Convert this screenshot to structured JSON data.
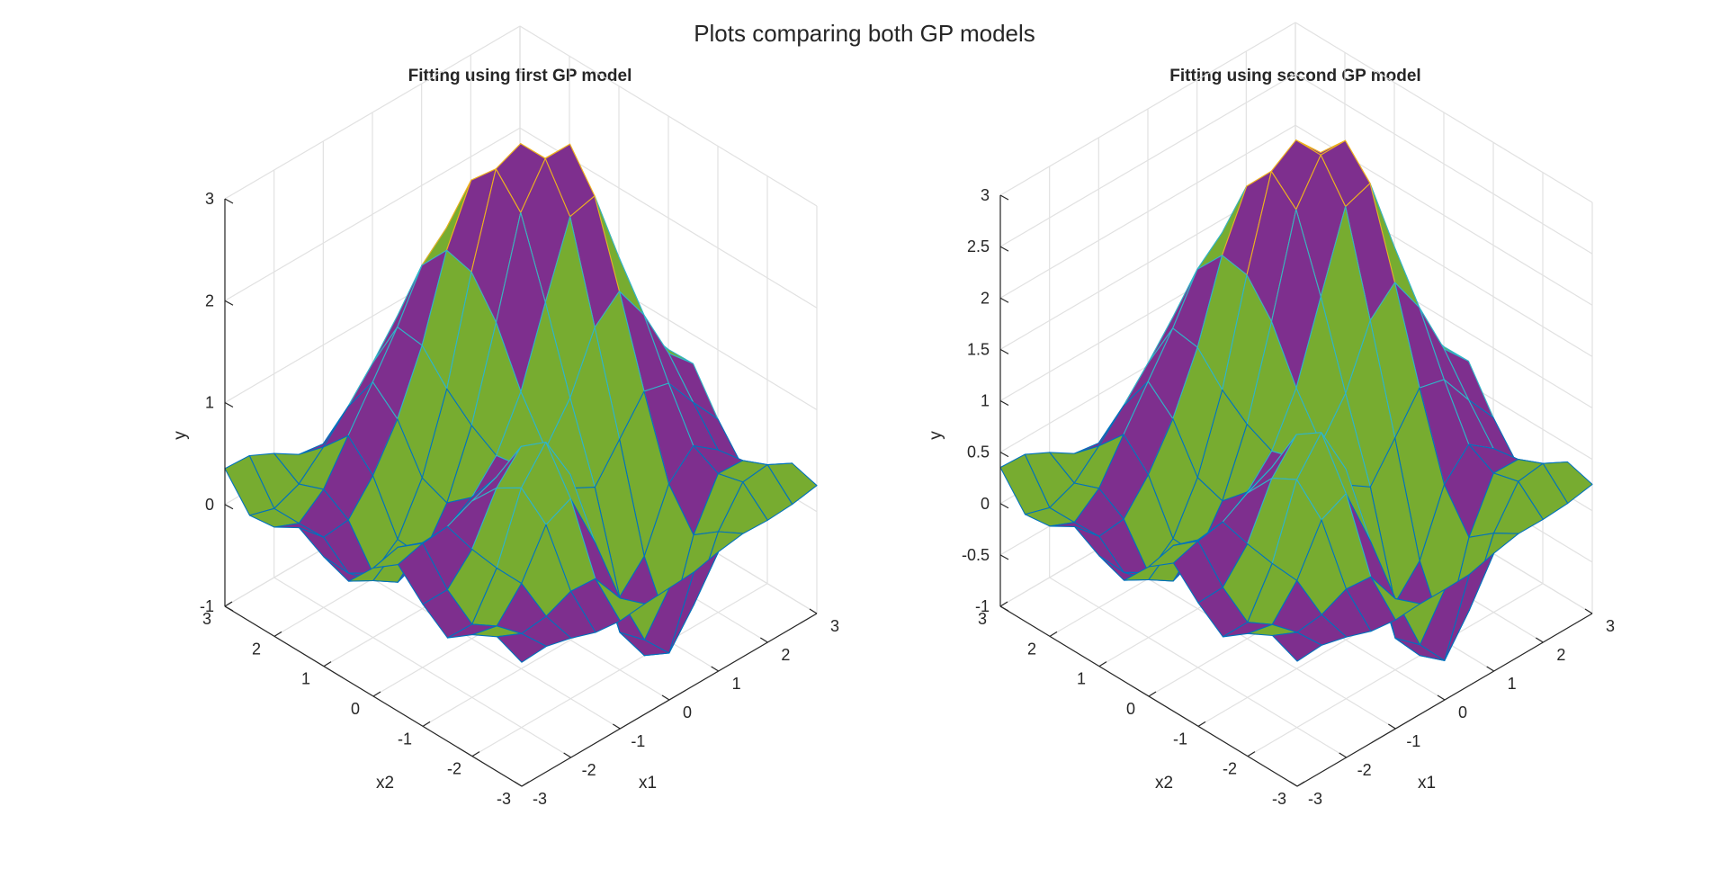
{
  "figure": {
    "title": "Plots comparing both GP models"
  },
  "colors": {
    "positive": "#7E2F8E",
    "negative": "#77AC30",
    "edge_low": "#0072BD",
    "edge_mid": "#2FB5C8",
    "edge_high": "#EDB120",
    "grid": "#e1e1e1",
    "axis": "#262626"
  },
  "chart_data": [
    {
      "type": "surface",
      "title": "Fitting using first GP model",
      "xlabel": "x1",
      "ylabel": "x2",
      "zlabel": "y",
      "xlim": [
        -3,
        3
      ],
      "ylim": [
        -3,
        3
      ],
      "zlim": [
        -1,
        3
      ],
      "xticks": [
        "-3",
        "-2",
        "-1",
        "0",
        "1",
        "2",
        "3"
      ],
      "yticks": [
        "-3",
        "-2",
        "-1",
        "0",
        "1",
        "2",
        "3"
      ],
      "zticks": [
        "-1",
        "0",
        "1",
        "2",
        "3"
      ],
      "grid": "on",
      "view": "isometric 3-D",
      "grid_size": [
        13,
        13
      ],
      "grid_x": [
        -3,
        -2.5,
        -2,
        -1.5,
        -1,
        -0.5,
        0,
        0.5,
        1,
        1.5,
        2,
        2.5,
        3
      ],
      "grid_y": [
        -3,
        -2.5,
        -2,
        -1.5,
        -1,
        -0.5,
        0,
        0.5,
        1,
        1.5,
        2,
        2.5,
        3
      ],
      "peaks": [
        {
          "x1": 0.5,
          "x2": 1.5,
          "y": 2.8
        },
        {
          "x1": 1.5,
          "x2": 0.2,
          "y": 2.9
        },
        {
          "x1": -1.0,
          "x2": -1.0,
          "y": 1.3
        }
      ],
      "troughs": [
        {
          "x1": 0.5,
          "x2": -2.0,
          "y": -0.9
        },
        {
          "x1": -2.0,
          "x2": 0.5,
          "y": -0.4
        }
      ]
    },
    {
      "type": "surface",
      "title": "Fitting using second GP model",
      "xlabel": "x1",
      "ylabel": "x2",
      "zlabel": "y",
      "xlim": [
        -3,
        3
      ],
      "ylim": [
        -3,
        3
      ],
      "zlim": [
        -1,
        3
      ],
      "xticks": [
        "-3",
        "-2",
        "-1",
        "0",
        "1",
        "2",
        "3"
      ],
      "yticks": [
        "-3",
        "-2",
        "-1",
        "0",
        "1",
        "2",
        "3"
      ],
      "zticks": [
        "-1",
        "-0.5",
        "0",
        "0.5",
        "1",
        "1.5",
        "2",
        "2.5",
        "3"
      ],
      "grid": "on",
      "view": "isometric 3-D",
      "grid_size": [
        13,
        13
      ],
      "grid_x": [
        -3,
        -2.5,
        -2,
        -1.5,
        -1,
        -0.5,
        0,
        0.5,
        1,
        1.5,
        2,
        2.5,
        3
      ],
      "grid_y": [
        -3,
        -2.5,
        -2,
        -1.5,
        -1,
        -0.5,
        0,
        0.5,
        1,
        1.5,
        2,
        2.5,
        3
      ],
      "peaks": [
        {
          "x1": 0.5,
          "x2": 1.5,
          "y": 2.7
        },
        {
          "x1": 1.5,
          "x2": 0.2,
          "y": 3.0
        },
        {
          "x1": -1.0,
          "x2": -1.0,
          "y": 1.4
        }
      ],
      "troughs": [
        {
          "x1": 0.5,
          "x2": -2.0,
          "y": -1.0
        },
        {
          "x1": -2.0,
          "x2": 0.5,
          "y": -0.4
        }
      ]
    }
  ]
}
